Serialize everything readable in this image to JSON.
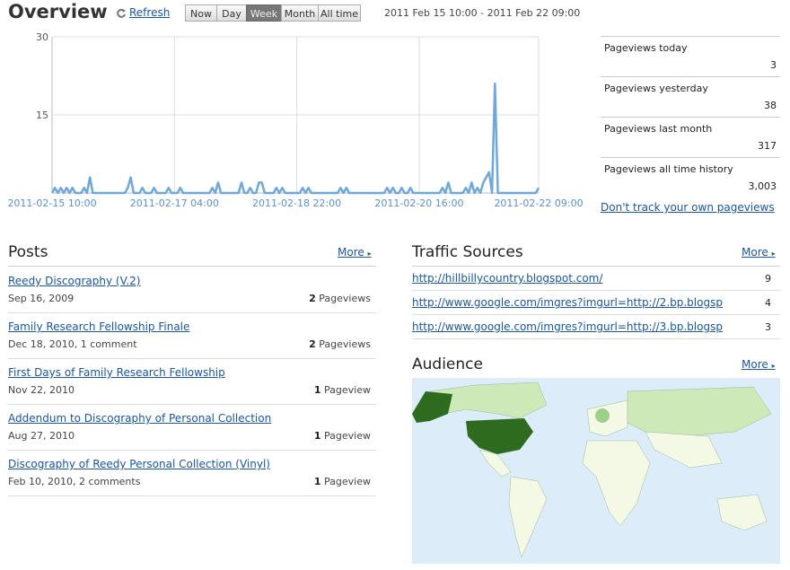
{
  "header": {
    "title": "Overview",
    "refresh": "Refresh",
    "ranges": [
      "Now",
      "Day",
      "Week",
      "Month",
      "All time"
    ],
    "selected_range": "Week",
    "date_range": "2011 Feb 15 10:00 - 2011 Feb 22 09:00"
  },
  "chart_data": {
    "type": "line",
    "color": "#6fa8dc",
    "ylim": [
      0,
      30
    ],
    "yticks": [
      15,
      30
    ],
    "grid": true,
    "categories": [
      "2011-02-15 10:00",
      null,
      null,
      null,
      null,
      null,
      null,
      null,
      null,
      null,
      null,
      null,
      null,
      null,
      null,
      null,
      null,
      null,
      null,
      null,
      null,
      null,
      null,
      null,
      null,
      null,
      null,
      null,
      null,
      null,
      null,
      null,
      null,
      null,
      null,
      null,
      null,
      null,
      null,
      null,
      null,
      null,
      "2011-02-17 04:00",
      null,
      null,
      null,
      null,
      null,
      null,
      null,
      null,
      null,
      null,
      null,
      null,
      null,
      null,
      null,
      null,
      null,
      null,
      null,
      null,
      null,
      null,
      null,
      null,
      null,
      null,
      null,
      null,
      null,
      null,
      null,
      null,
      null,
      null,
      null,
      null,
      null,
      null,
      null,
      null,
      null,
      "2011-02-18 22:00",
      null,
      null,
      null,
      null,
      null,
      null,
      null,
      null,
      null,
      null,
      null,
      null,
      null,
      null,
      null,
      null,
      null,
      null,
      null,
      null,
      null,
      null,
      null,
      null,
      null,
      null,
      null,
      null,
      null,
      null,
      null,
      null,
      null,
      null,
      null,
      null,
      null,
      null,
      null,
      null,
      null,
      "2011-02-20 16:00",
      null,
      null,
      null,
      null,
      null,
      null,
      null,
      null,
      null,
      null,
      null,
      null,
      null,
      null,
      null,
      null,
      null,
      null,
      null,
      null,
      null,
      null,
      null,
      null,
      null,
      null,
      null,
      null,
      null,
      null,
      null,
      null,
      null,
      null,
      null,
      null,
      null,
      null,
      null,
      null,
      "2011-02-22 09:00"
    ],
    "values": [
      0,
      1,
      0,
      1,
      0,
      1,
      0,
      1,
      0,
      0,
      0,
      1,
      0,
      3,
      0,
      0,
      0,
      0,
      0,
      0,
      0,
      0,
      0,
      0,
      0,
      0,
      1,
      3,
      0,
      0,
      0,
      1,
      0,
      0,
      0,
      1,
      0,
      0,
      0,
      0,
      1,
      0,
      0,
      0,
      1,
      0,
      0,
      0,
      0,
      0,
      0,
      0,
      0,
      0,
      0,
      1,
      0,
      2,
      0,
      0,
      0,
      0,
      0,
      0,
      0,
      2,
      0,
      0,
      1,
      0,
      0,
      2,
      2,
      0,
      0,
      0,
      0,
      1,
      0,
      1,
      0,
      0,
      0,
      0,
      0,
      0,
      1,
      0,
      1,
      0,
      0,
      0,
      0,
      0,
      0,
      0,
      0,
      0,
      0,
      1,
      0,
      1,
      0,
      0,
      0,
      0,
      0,
      0,
      0,
      0,
      0,
      0,
      0,
      0,
      0,
      1,
      0,
      1,
      0,
      0,
      1,
      0,
      0,
      1,
      0,
      0,
      0,
      0,
      0,
      0,
      0,
      0,
      0,
      0,
      1,
      0,
      2,
      0,
      0,
      0,
      0,
      0,
      1,
      0,
      2,
      0,
      1,
      0,
      2,
      3,
      4,
      0,
      21,
      0,
      0,
      0,
      0,
      0,
      0,
      0,
      0,
      0,
      0,
      0,
      0,
      0,
      0,
      1
    ]
  },
  "stats": {
    "rows": [
      {
        "label": "Pageviews today",
        "value": 3
      },
      {
        "label": "Pageviews yesterday",
        "value": 38
      },
      {
        "label": "Pageviews last month",
        "value": 317
      },
      {
        "label": "Pageviews all time history",
        "value": "3,003"
      }
    ],
    "link": "Don't track your own pageviews"
  },
  "posts": {
    "title": "Posts",
    "more": "More",
    "rows": [
      {
        "title": "Reedy Discography (V.2)",
        "meta": "Sep 16, 2009",
        "count": 2,
        "unit": "Pageviews"
      },
      {
        "title": "Family Research Fellowship Finale",
        "meta": "Dec 18, 2010, 1 comment",
        "count": 2,
        "unit": "Pageviews"
      },
      {
        "title": "First Days of Family Research Fellowship",
        "meta": "Nov 22, 2010",
        "count": 1,
        "unit": "Pageview"
      },
      {
        "title": "Addendum to Discography of Personal Collection",
        "meta": "Aug 27, 2010",
        "count": 1,
        "unit": "Pageview"
      },
      {
        "title": "Discography of Reedy Personal Collection (Vinyl)",
        "meta": "Feb 10, 2010, 2 comments",
        "count": 1,
        "unit": "Pageview"
      }
    ]
  },
  "traffic": {
    "title": "Traffic Sources",
    "more": "More",
    "rows": [
      {
        "url": "http://hillbillycountry.blogspot.com/",
        "count": 9
      },
      {
        "url": "http://www.google.com/imgres?imgurl=http://2.bp.blogsp",
        "count": 4
      },
      {
        "url": "http://www.google.com/imgres?imgurl=http://3.bp.blogsp",
        "count": 3
      }
    ]
  },
  "audience": {
    "title": "Audience",
    "more": "More"
  }
}
